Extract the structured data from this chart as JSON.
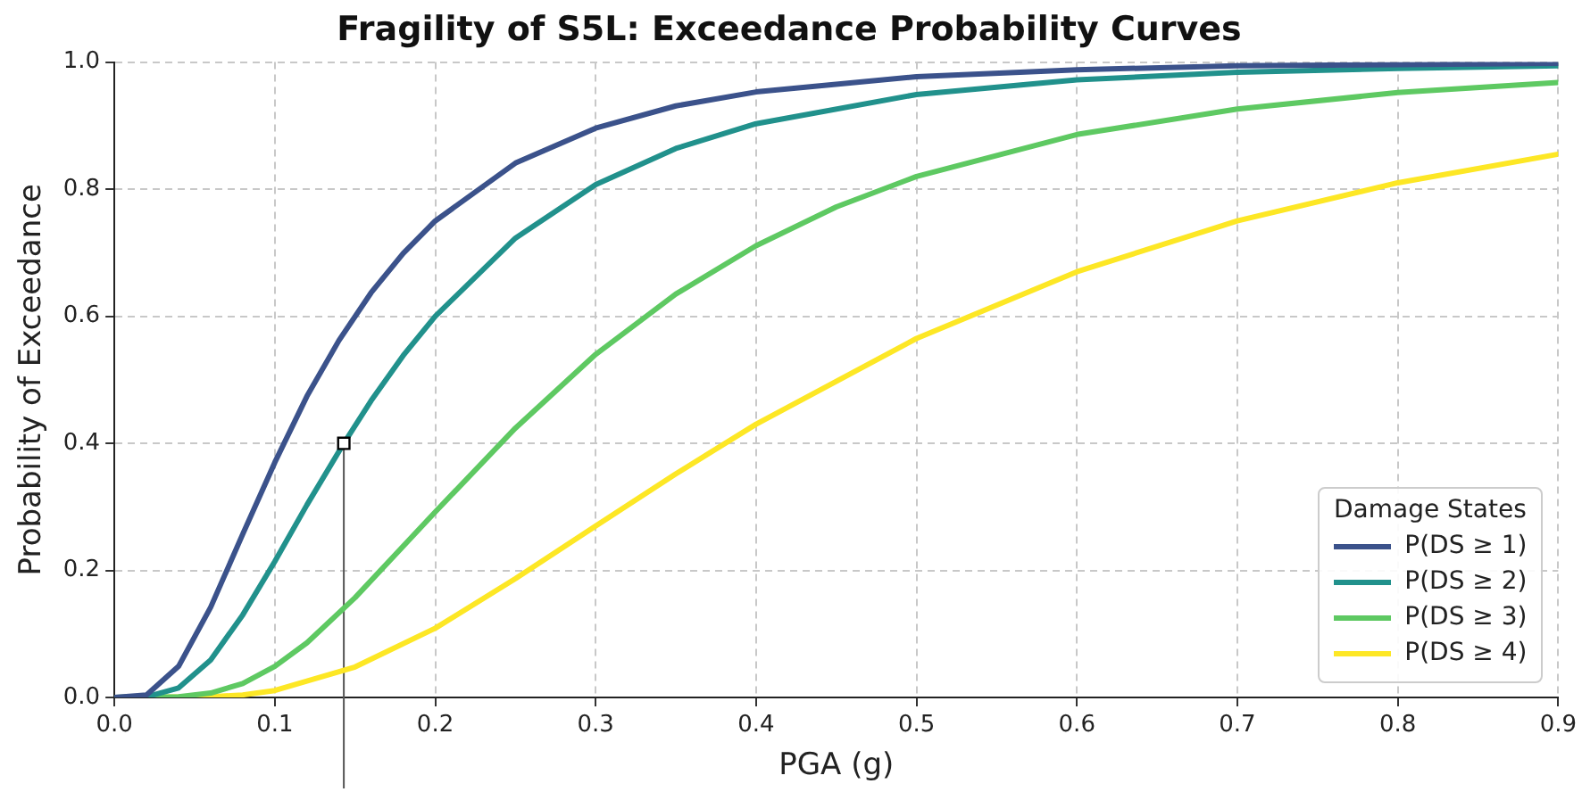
{
  "chart_data": {
    "type": "line",
    "title": "Fragility of S5L: Exceedance Probability Curves",
    "xlabel": "PGA (g)",
    "ylabel": "Probability of Exceedance",
    "legend_title": "Damage States",
    "legend": "bottom right",
    "grid": true,
    "marker": "none",
    "line_style": "solid",
    "xlim": [
      0,
      0.9
    ],
    "ylim": [
      0,
      1
    ],
    "ref_lines": [
      {
        "axis": "x",
        "value": 0.143,
        "color": "#555555"
      }
    ],
    "xticks": [
      {
        "value": 0,
        "label": "0.0"
      },
      {
        "value": 0.1,
        "label": "0.1"
      },
      {
        "value": 0.2,
        "label": "0.2"
      },
      {
        "value": 0.3,
        "label": "0.3"
      },
      {
        "value": 0.4,
        "label": "0.4"
      },
      {
        "value": 0.5,
        "label": "0.5"
      },
      {
        "value": 0.6,
        "label": "0.6"
      },
      {
        "value": 0.7,
        "label": "0.7"
      },
      {
        "value": 0.8,
        "label": "0.8"
      },
      {
        "value": 0.9,
        "label": "0.9"
      }
    ],
    "yticks": [
      {
        "value": 0,
        "label": "0.0"
      },
      {
        "value": 0.2,
        "label": "0.2"
      },
      {
        "value": 0.4,
        "label": "0.4"
      },
      {
        "value": 0.6,
        "label": "0.6"
      },
      {
        "value": 0.8,
        "label": "0.8"
      },
      {
        "value": 1,
        "label": "1.0"
      }
    ],
    "series": [
      {
        "name": "P(DS ≥ 1)",
        "color": "#3b528b",
        "x": [
          0,
          0.02,
          0.04,
          0.06,
          0.08,
          0.1,
          0.12,
          0.14,
          0.16,
          0.18,
          0.2,
          0.25,
          0.3,
          0.35,
          0.4,
          0.5,
          0.6,
          0.7,
          0.8,
          0.9
        ],
        "values": [
          0,
          0.004,
          0.049,
          0.142,
          0.257,
          0.37,
          0.474,
          0.562,
          0.637,
          0.699,
          0.75,
          0.841,
          0.896,
          0.931,
          0.953,
          0.977,
          0.988,
          0.994,
          0.996,
          0.998
        ]
      },
      {
        "name": "P(DS ≥ 2)",
        "color": "#21918c",
        "x": [
          0,
          0.02,
          0.04,
          0.06,
          0.08,
          0.1,
          0.12,
          0.143,
          0.16,
          0.18,
          0.2,
          0.25,
          0.3,
          0.35,
          0.4,
          0.5,
          0.6,
          0.7,
          0.8,
          0.9
        ],
        "values": [
          0,
          0.001,
          0.015,
          0.059,
          0.13,
          0.214,
          0.303,
          0.4,
          0.467,
          0.538,
          0.6,
          0.723,
          0.807,
          0.864,
          0.903,
          0.949,
          0.972,
          0.984,
          0.99,
          0.994
        ]
      },
      {
        "name": "P(DS ≥ 3)",
        "color": "#5ec962",
        "x": [
          0,
          0.04,
          0.06,
          0.08,
          0.1,
          0.12,
          0.15,
          0.2,
          0.25,
          0.3,
          0.35,
          0.4,
          0.45,
          0.5,
          0.6,
          0.7,
          0.8,
          0.9
        ],
        "values": [
          0,
          0.001,
          0.007,
          0.022,
          0.049,
          0.086,
          0.157,
          0.292,
          0.424,
          0.54,
          0.635,
          0.711,
          0.772,
          0.82,
          0.886,
          0.926,
          0.952,
          0.968
        ]
      },
      {
        "name": "P(DS ≥ 4)",
        "color": "#fde725",
        "x": [
          0,
          0.06,
          0.08,
          0.1,
          0.15,
          0.2,
          0.25,
          0.3,
          0.35,
          0.4,
          0.5,
          0.6,
          0.7,
          0.8,
          0.9
        ],
        "values": [
          0,
          0.001,
          0.004,
          0.011,
          0.048,
          0.109,
          0.187,
          0.27,
          0.352,
          0.43,
          0.565,
          0.67,
          0.75,
          0.81,
          0.855
        ]
      },
      {
        "type": "scatter",
        "marker": "square",
        "color": "#ffffff",
        "x": [
          0.143
        ],
        "values": [
          0.4
        ]
      }
    ]
  }
}
